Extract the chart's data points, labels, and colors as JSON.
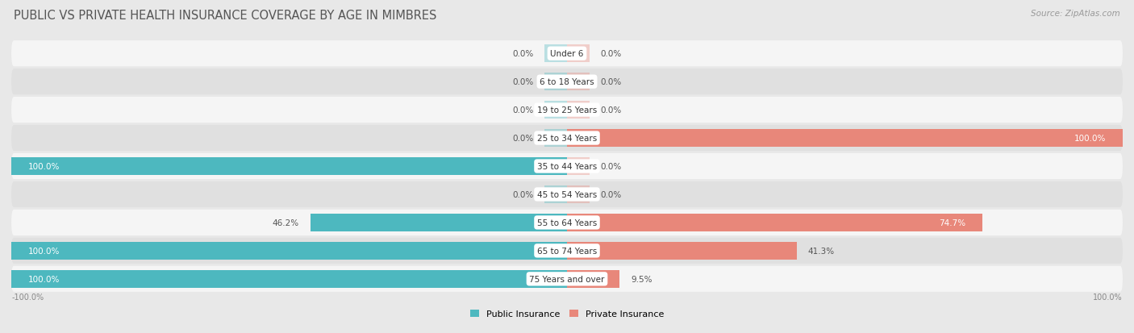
{
  "title": "PUBLIC VS PRIVATE HEALTH INSURANCE COVERAGE BY AGE IN MIMBRES",
  "source": "Source: ZipAtlas.com",
  "categories": [
    "Under 6",
    "6 to 18 Years",
    "19 to 25 Years",
    "25 to 34 Years",
    "35 to 44 Years",
    "45 to 54 Years",
    "55 to 64 Years",
    "65 to 74 Years",
    "75 Years and over"
  ],
  "public_values": [
    0.0,
    0.0,
    0.0,
    0.0,
    100.0,
    0.0,
    46.2,
    100.0,
    100.0
  ],
  "private_values": [
    0.0,
    0.0,
    0.0,
    100.0,
    0.0,
    0.0,
    74.7,
    41.3,
    9.5
  ],
  "public_color": "#4db8bf",
  "private_color": "#e8877a",
  "bg_color": "#e8e8e8",
  "row_light": "#f5f5f5",
  "row_dark": "#e0e0e0",
  "bar_height": 0.62,
  "xlim_left": -100,
  "xlim_right": 100,
  "legend_public": "Public Insurance",
  "legend_private": "Private Insurance",
  "title_fontsize": 10.5,
  "label_fontsize": 7.5,
  "category_fontsize": 7.5,
  "source_fontsize": 7.5
}
